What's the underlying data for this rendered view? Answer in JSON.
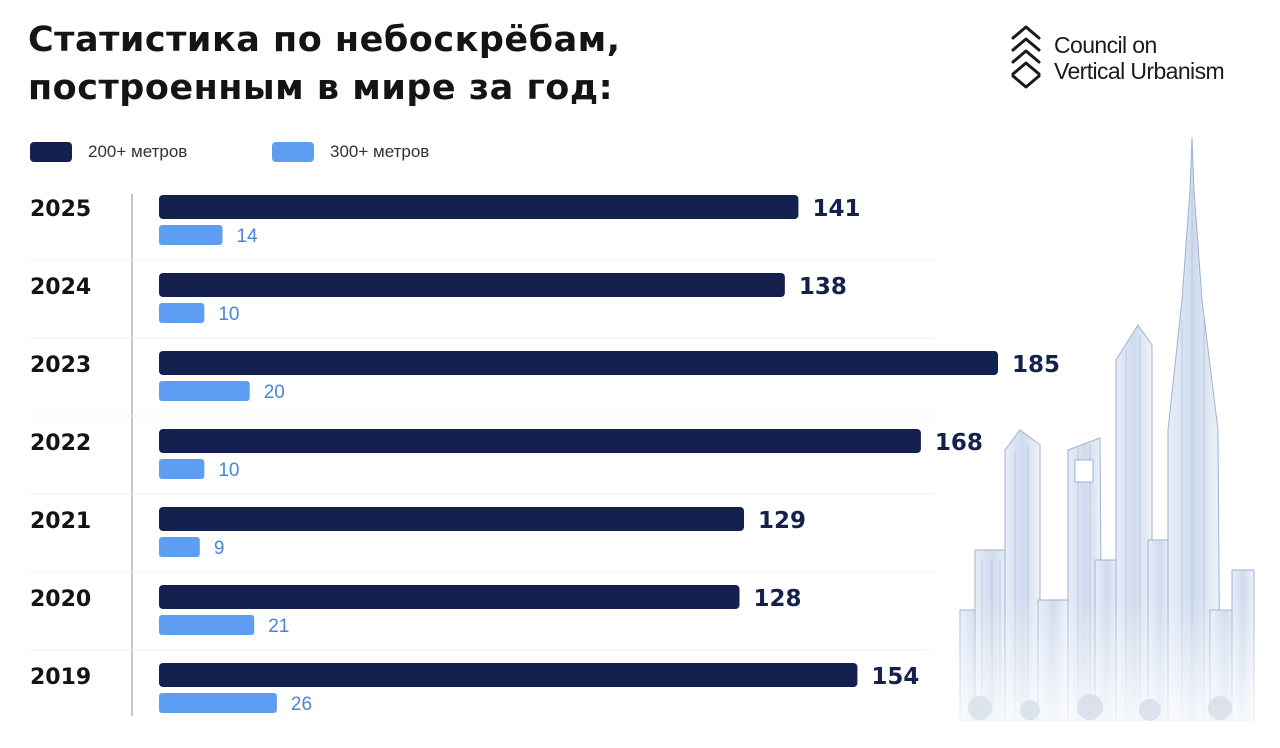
{
  "title": "Статистика по небоскрёбам, построенным в мире за год:",
  "brand": {
    "line1": "Council on",
    "line2": "Vertical Urbanism",
    "icon": "layered-chevron-logo-icon"
  },
  "colors": {
    "series_200": "#14214f",
    "series_300": "#5e9ef2",
    "value_200": "#14214a",
    "value_300": "#4a86d6"
  },
  "legend": [
    {
      "label": "200+ метров",
      "color": "#14214f"
    },
    {
      "label": "300+ метров",
      "color": "#5e9ef2"
    }
  ],
  "chart_data": {
    "type": "bar",
    "orientation": "horizontal",
    "title": "Статистика по небоскрёбам, построенным в мире за год:",
    "categories": [
      "2025",
      "2024",
      "2023",
      "2022",
      "2021",
      "2020",
      "2019"
    ],
    "series": [
      {
        "name": "200+ метров",
        "values": [
          141,
          138,
          185,
          168,
          129,
          128,
          154
        ]
      },
      {
        "name": "300+ метров",
        "values": [
          14,
          10,
          20,
          10,
          9,
          21,
          26
        ]
      }
    ],
    "xlim": [
      0,
      185
    ],
    "grid": false,
    "legend_position": "top-left"
  }
}
